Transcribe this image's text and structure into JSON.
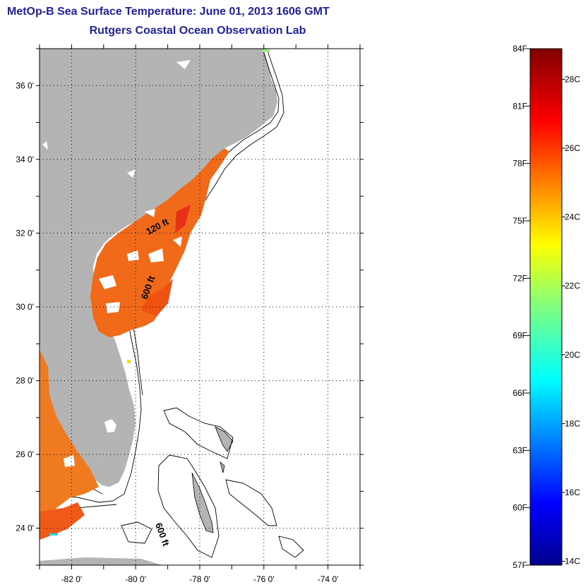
{
  "title": "MetOp-B Sea Surface Temperature:  June 01, 2013 1606 GMT",
  "subtitle": "Rutgers Coastal Ocean Observation Lab",
  "map": {
    "lat_labels": [
      "24 0'",
      "26 0'",
      "28 0'",
      "30 0'",
      "32 0'",
      "34 0'",
      "36 0'"
    ],
    "lon_labels": [
      "-82 0'",
      "-80 0'",
      "-78 0'",
      "-76 0'",
      "-74 0'"
    ],
    "lat_values": [
      24,
      26,
      28,
      30,
      32,
      34,
      36
    ],
    "lon_values": [
      -82,
      -80,
      -78,
      -76,
      -74
    ],
    "lat_range": [
      23,
      37
    ],
    "lon_range": [
      -83,
      -73
    ],
    "contour_labels": [
      "120 ft",
      "600 ft",
      "600 ft"
    ],
    "colors": {
      "land": "#b4b4b4",
      "background": "#ffffff",
      "sst_warm": "#f06a1a"
    }
  },
  "colorbar": {
    "f_labels": [
      "84F",
      "81F",
      "78F",
      "75F",
      "72F",
      "69F",
      "66F",
      "63F",
      "60F",
      "57F"
    ],
    "c_labels": [
      "28C",
      "26C",
      "24C",
      "22C",
      "20C",
      "18C",
      "16C",
      "14C"
    ],
    "f_values": [
      84,
      81,
      78,
      75,
      72,
      69,
      66,
      63,
      60,
      57
    ],
    "c_values": [
      28,
      26,
      24,
      22,
      20,
      18,
      16,
      14
    ],
    "range_f": [
      57,
      84
    ]
  }
}
